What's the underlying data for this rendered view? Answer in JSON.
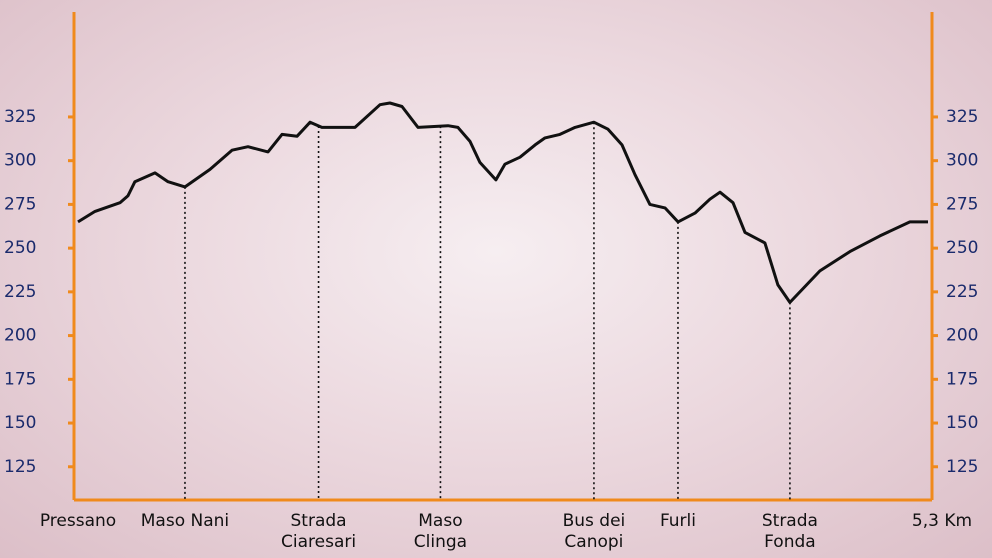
{
  "chart_data": {
    "type": "line",
    "color": "#111111",
    "axis_color": "#f08a1c",
    "tick_color": "#1a2a6c",
    "xlim": [
      0,
      5.3
    ],
    "ylim": [
      106,
      385
    ],
    "yticks": [
      125,
      150,
      175,
      200,
      225,
      250,
      275,
      300,
      325
    ],
    "start_label": "Pressano",
    "end_label": "5,3 Km",
    "waypoints": [
      {
        "label": "Maso Nani",
        "x": 0.667
      },
      {
        "label": "Strada Ciaresari",
        "x": 1.5
      },
      {
        "label": "Maso Clinga",
        "x": 2.26
      },
      {
        "label": "Bus dei Canopi",
        "x": 3.217
      },
      {
        "label": "Furli",
        "x": 3.741
      },
      {
        "label": "Strada Fonda",
        "x": 4.439
      }
    ],
    "x": [
      0,
      0.106,
      0.262,
      0.312,
      0.355,
      0.48,
      0.561,
      0.667,
      0.823,
      0.96,
      1.06,
      1.185,
      1.272,
      1.366,
      1.447,
      1.521,
      1.727,
      1.883,
      1.945,
      2.02,
      2.12,
      2.307,
      2.369,
      2.444,
      2.506,
      2.606,
      2.662,
      2.756,
      2.85,
      2.912,
      3.005,
      3.099,
      3.217,
      3.305,
      3.392,
      3.473,
      3.566,
      3.66,
      3.741,
      3.847,
      3.94,
      4.003,
      4.084,
      4.159,
      4.283,
      4.364,
      4.439,
      4.626,
      4.813,
      5.0,
      5.187,
      5.3
    ],
    "values": [
      265,
      271,
      276,
      280,
      288,
      293,
      288,
      285,
      295,
      306,
      308,
      305,
      315,
      314,
      322,
      319,
      319,
      332,
      333,
      331,
      319,
      320,
      319,
      311,
      299,
      289,
      298,
      302,
      309,
      313,
      315,
      319,
      322,
      318,
      309,
      292,
      275,
      273,
      265,
      270,
      278,
      282,
      276,
      259,
      253,
      229,
      219,
      237,
      248,
      257,
      265,
      265
    ]
  }
}
